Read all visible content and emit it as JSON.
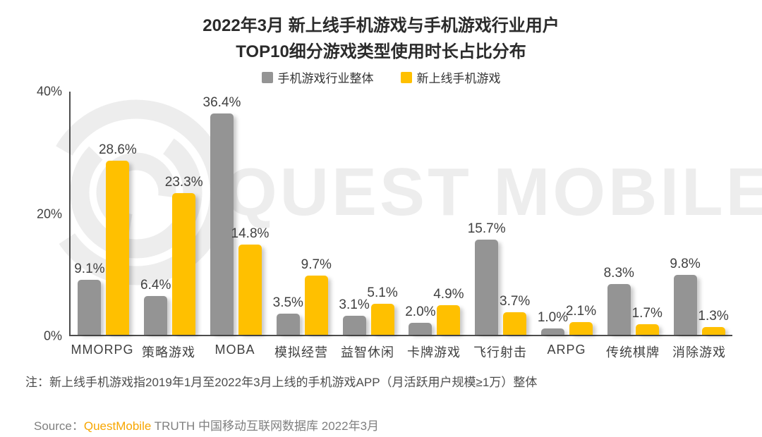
{
  "title": {
    "line1": "2022年3月 新上线手机游戏与手机游戏行业用户",
    "line2": "TOP10细分游戏类型使用时长占比分布"
  },
  "legend": [
    {
      "label": "手机游戏行业整体",
      "color": "#949494"
    },
    {
      "label": "新上线手机游戏",
      "color": "#FFC000"
    }
  ],
  "chart_data": {
    "type": "bar",
    "title": "2022年3月 新上线手机游戏与手机游戏行业用户 TOP10细分游戏类型使用时长占比分布",
    "categories": [
      "MMORPG",
      "策略游戏",
      "MOBA",
      "模拟经营",
      "益智休闲",
      "卡牌游戏",
      "飞行射击",
      "ARPG",
      "传统棋牌",
      "消除游戏"
    ],
    "series": [
      {
        "name": "手机游戏行业整体",
        "color": "#949494",
        "values": [
          9.1,
          6.4,
          36.4,
          3.5,
          3.1,
          2.0,
          15.7,
          1.0,
          8.3,
          9.8
        ]
      },
      {
        "name": "新上线手机游戏",
        "color": "#FFC000",
        "values": [
          28.6,
          23.3,
          14.8,
          9.7,
          5.1,
          4.9,
          3.7,
          2.1,
          1.7,
          1.3
        ]
      }
    ],
    "value_suffix": "%",
    "xlabel": "",
    "ylabel": "",
    "ylim": [
      0,
      40
    ],
    "y_ticks": [
      {
        "label": "40%",
        "value": 40
      },
      {
        "label": "20%",
        "value": 20
      },
      {
        "label": "0%",
        "value": 0
      }
    ],
    "grid": false,
    "legend_position": "top"
  },
  "watermark": {
    "text": "QUEST MOBILE"
  },
  "note": "注：新上线手机游戏指2019年1月至2022年3月上线的手机游戏APP（月活跃用户规模≥1万）整体",
  "source": {
    "prefix": "Source：",
    "brand": "QuestMobile",
    "suffix": " TRUTH 中国移动互联网数据库 2022年3月"
  },
  "colors": {
    "industry_bar": "#949494",
    "new_game_bar": "#FFC000",
    "brand_orange": "#F7A600",
    "axis": "#4d4d4d",
    "watermark": "#ededed"
  }
}
